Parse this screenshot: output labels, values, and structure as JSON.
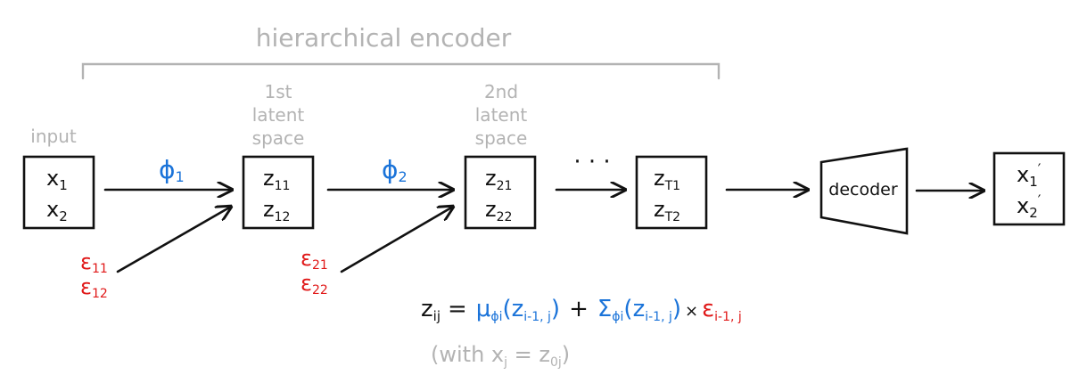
{
  "title": "hierarchical encoder",
  "input_label": "input",
  "latent_labels": [
    {
      "line1": "1st",
      "line2": "latent",
      "line3": "space"
    },
    {
      "line1": "2nd",
      "line2": "latent",
      "line3": "space"
    }
  ],
  "boxes": [
    {
      "top": "x",
      "top_sub": "1",
      "bottom": "x",
      "bottom_sub": "2"
    },
    {
      "top": "z",
      "top_sub": "11",
      "bottom": "z",
      "bottom_sub": "12"
    },
    {
      "top": "z",
      "top_sub": "21",
      "bottom": "z",
      "bottom_sub": "22"
    },
    {
      "top": "z",
      "top_sub": "T1",
      "bottom": "z",
      "bottom_sub": "T2"
    },
    {
      "top": "x",
      "top_sub": "1",
      "top_prime": "′",
      "bottom": "x",
      "bottom_sub": "2",
      "bottom_prime": "′"
    }
  ],
  "phis": [
    {
      "symbol": "ϕ",
      "sub": "1"
    },
    {
      "symbol": "ϕ",
      "sub": "2"
    }
  ],
  "epsilons": [
    {
      "a": "ε",
      "a_sub": "11",
      "b": "ε",
      "b_sub": "12"
    },
    {
      "a": "ε",
      "a_sub": "21",
      "b": "ε",
      "b_sub": "22"
    }
  ],
  "ellipsis": "· · ·",
  "decoder_label": "decoder",
  "equation": {
    "lhs": "z",
    "lhs_sub": "ij",
    "equals": "=",
    "mu": "μ",
    "mu_sub": "ϕi",
    "mu_arg": "(z",
    "mu_arg_sub": "i-1, j",
    "mu_close": ")",
    "plus": "+",
    "sigma": "Σ",
    "sigma_sub": "ϕi",
    "sigma_arg": "(z",
    "sigma_arg_sub": "i-1, j",
    "sigma_close": ")",
    "times": "×",
    "eps": "ε",
    "eps_sub": "i-1, j"
  },
  "note": "(with x",
  "note_sub": "j",
  "note_mid": " = z",
  "note_sub2": "0j",
  "note_close": ")",
  "colors": {
    "gray": "#b3b3b3",
    "blue": "#1a73d9",
    "red": "#e01818",
    "black": "#111111"
  }
}
